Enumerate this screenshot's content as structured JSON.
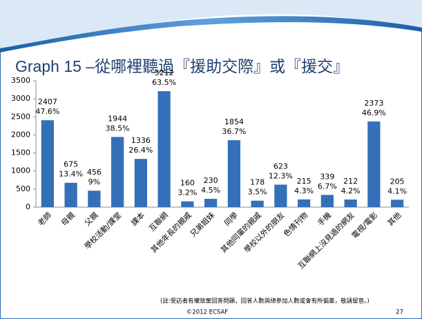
{
  "title": "Graph 15 –從哪裡聽過『援助交際』或『援交』",
  "chart_data": {
    "type": "bar",
    "categories": [
      "老師",
      "母親",
      "父親",
      "學校活動/課堂",
      "課本",
      "互聯網",
      "其他年長的親戚",
      "兄弟姐妹",
      "同學",
      "其他同輩的親戚",
      "學校以外的朋友",
      "色情刊物",
      "手機",
      "互聯網上沒見過的網友",
      "電視/電影",
      "其他"
    ],
    "values": [
      2407,
      675,
      456,
      1944,
      1336,
      3212,
      160,
      230,
      1854,
      178,
      623,
      215,
      339,
      212,
      2373,
      205
    ],
    "share_labels": [
      "47.6%",
      "13.4%",
      "9%",
      "38.5%",
      "26.4%",
      "63.5%",
      "3.2%",
      "4.5%",
      "36.7%",
      "3.5%",
      "12.3%",
      "4.3%",
      "6.7%",
      "4.2%",
      "46.9%",
      "4.1%"
    ],
    "color": "#3470b8",
    "ylim": [
      0,
      3500
    ],
    "yticks": [
      0,
      500,
      1000,
      1500,
      2000,
      2500,
      3000,
      3500
    ]
  },
  "footnote": "(註:受訪者有權放棄回答問題，回答人數與總參加人數或會有所偏差，敬請留意。)",
  "copyright": "©2012 ECSAF",
  "page_number": "27"
}
